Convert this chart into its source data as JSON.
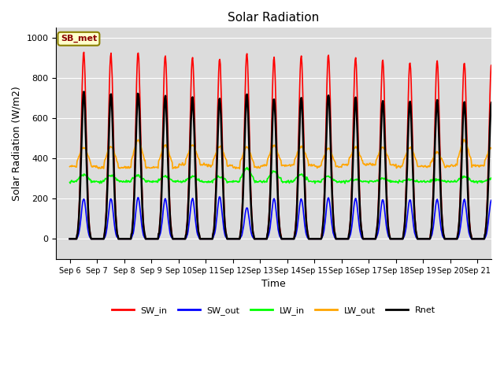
{
  "title": "Solar Radiation",
  "xlabel": "Time",
  "ylabel": "Solar Radiation (W/m2)",
  "ylim": [
    -100,
    1050
  ],
  "xlim_days": [
    5.5,
    21.5
  ],
  "x_tick_labels": [
    "Sep 6",
    "Sep 7",
    "Sep 8",
    "Sep 9",
    "Sep 10",
    "Sep 11",
    "Sep 12",
    "Sep 13",
    "Sep 14",
    "Sep 15",
    "Sep 16",
    "Sep 17",
    "Sep 18",
    "Sep 19",
    "Sep 20",
    "Sep 21"
  ],
  "x_tick_positions": [
    6,
    7,
    8,
    9,
    10,
    11,
    12,
    13,
    14,
    15,
    16,
    17,
    18,
    19,
    20,
    21
  ],
  "fig_bg_color": "#ffffff",
  "plot_bg_color": "#dcdcdc",
  "annotation_text": "SB_met",
  "annotation_color": "#8B0000",
  "annotation_bg": "#ffffcc",
  "annotation_edge": "#8B8000",
  "colors": {
    "SW_in": "red",
    "SW_out": "blue",
    "LW_in": "lime",
    "LW_out": "orange",
    "Rnet": "black"
  },
  "linewidths": {
    "SW_in": 1.2,
    "SW_out": 1.2,
    "LW_in": 1.2,
    "LW_out": 1.2,
    "Rnet": 1.8
  },
  "SW_in_peak": [
    930,
    920,
    930,
    915,
    905,
    900,
    920,
    900,
    910,
    920,
    905,
    890,
    880,
    885,
    880,
    870
  ],
  "SW_out_peak": [
    200,
    200,
    205,
    200,
    200,
    210,
    155,
    200,
    200,
    205,
    200,
    195,
    195,
    195,
    195,
    195
  ],
  "LW_in_base": [
    285,
    285,
    285,
    285,
    285,
    285,
    285,
    285,
    285,
    285,
    285,
    285,
    285,
    285,
    285,
    285
  ],
  "LW_in_peak": [
    320,
    315,
    315,
    310,
    310,
    310,
    350,
    335,
    320,
    310,
    295,
    300,
    295,
    295,
    310,
    300
  ],
  "LW_out_base": [
    360,
    355,
    355,
    355,
    370,
    365,
    355,
    365,
    365,
    360,
    370,
    370,
    360,
    360,
    365,
    365
  ],
  "LW_out_peak": [
    455,
    460,
    490,
    465,
    465,
    460,
    455,
    465,
    460,
    450,
    455,
    455,
    455,
    430,
    490,
    455
  ],
  "Rnet_peak": [
    730,
    725,
    730,
    710,
    705,
    700,
    720,
    700,
    705,
    720,
    700,
    690,
    685,
    690,
    685,
    680
  ]
}
